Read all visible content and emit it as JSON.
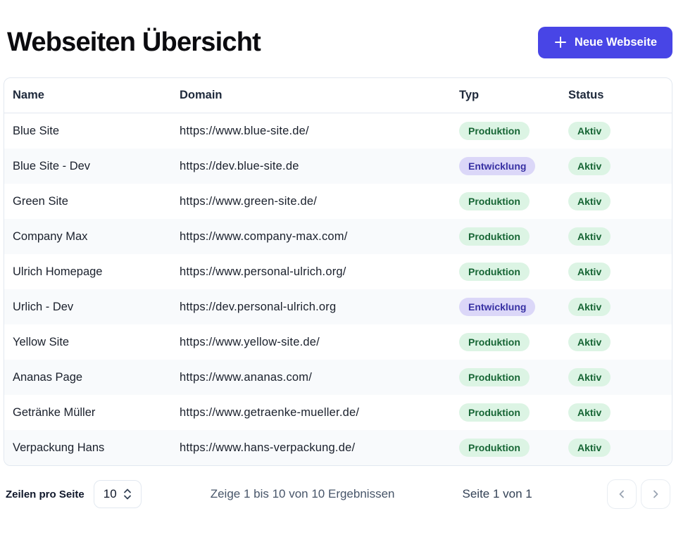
{
  "page": {
    "title": "Webseiten Übersicht",
    "new_button_label": "Neue Webseite"
  },
  "colors": {
    "accent": "#4845e6",
    "badge_green_bg": "#dcf4e4",
    "badge_green_text": "#166534",
    "badge_purple_bg": "#dbd7f8",
    "badge_purple_text": "#3730a3"
  },
  "table": {
    "columns": [
      "Name",
      "Domain",
      "Typ",
      "Status"
    ],
    "badge_styles": {
      "Produktion": "green",
      "Entwicklung": "purple",
      "Aktiv": "green"
    },
    "rows": [
      {
        "name": "Blue Site",
        "domain": "https://www.blue-site.de/",
        "typ": "Produktion",
        "status": "Aktiv"
      },
      {
        "name": "Blue Site - Dev",
        "domain": "https://dev.blue-site.de",
        "typ": "Entwicklung",
        "status": "Aktiv"
      },
      {
        "name": "Green Site",
        "domain": "https://www.green-site.de/",
        "typ": "Produktion",
        "status": "Aktiv"
      },
      {
        "name": "Company Max",
        "domain": "https://www.company-max.com/",
        "typ": "Produktion",
        "status": "Aktiv"
      },
      {
        "name": "Ulrich Homepage",
        "domain": "https://www.personal-ulrich.org/",
        "typ": "Produktion",
        "status": "Aktiv"
      },
      {
        "name": "Urlich - Dev",
        "domain": "https://dev.personal-ulrich.org",
        "typ": "Entwicklung",
        "status": "Aktiv"
      },
      {
        "name": "Yellow Site",
        "domain": "https://www.yellow-site.de/",
        "typ": "Produktion",
        "status": "Aktiv"
      },
      {
        "name": "Ananas Page",
        "domain": "https://www.ananas.com/",
        "typ": "Produktion",
        "status": "Aktiv"
      },
      {
        "name": "Getränke Müller",
        "domain": "https://www.getraenke-mueller.de/",
        "typ": "Produktion",
        "status": "Aktiv"
      },
      {
        "name": "Verpackung Hans",
        "domain": "https://www.hans-verpackung.de/",
        "typ": "Produktion",
        "status": "Aktiv"
      }
    ]
  },
  "footer": {
    "rows_per_page_label": "Zeilen pro Seite",
    "rows_per_page_value": "10",
    "results_text": "Zeige 1 bis 10 von 10 Ergebnissen",
    "page_text": "Seite 1 von 1"
  }
}
